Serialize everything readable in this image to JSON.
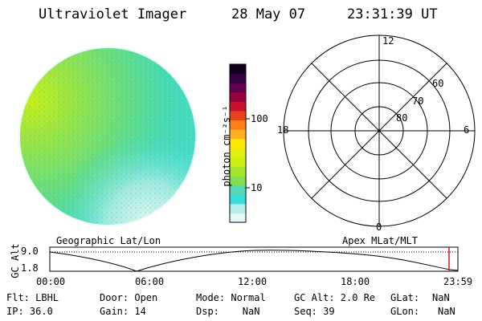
{
  "header": {
    "title": "Ultraviolet Imager",
    "date": "28 May 07",
    "time": "23:31:39 UT"
  },
  "colorbar": {
    "label": "photon cm⁻²s⁻¹",
    "ticks": [
      "100",
      "10"
    ],
    "colors": [
      "#e6f7f7",
      "#b6ecec",
      "#36dede",
      "#58d8b4",
      "#82df50",
      "#a8e62c",
      "#c9f00f",
      "#e6ee10",
      "#ffe800",
      "#ffb020",
      "#ff7e18",
      "#e8421c",
      "#c8102e",
      "#96003c",
      "#640050",
      "#330040",
      "#14001e"
    ]
  },
  "polar": {
    "labels": {
      "top": "12",
      "bottom": "0",
      "left": "18",
      "right": "6"
    },
    "rings": [
      "60",
      "70",
      "80"
    ]
  },
  "timeline": {
    "left_title": "Geographic Lat/Lon",
    "right_title": "Apex MLat/MLT",
    "axis_title": "GC Alt",
    "y_ticks": [
      "9.0",
      "1.8"
    ],
    "x_ticks": [
      "00:00",
      "06:00",
      "12:00",
      "18:00",
      "23:59"
    ]
  },
  "status": {
    "flt": "Flt: LBHL",
    "ip": "IP: 36.0",
    "door": "Door: Open",
    "gain": "Gain: 14",
    "mode": "Mode: Normal",
    "dsp": "Dsp:    NaN",
    "gcalt": "GC Alt: 2.0 Re",
    "seq": "Seq: 39",
    "glat_label": "GLat:",
    "glat_value": "NaN",
    "glon_label": "GLon:",
    "glon_value": "NaN"
  }
}
